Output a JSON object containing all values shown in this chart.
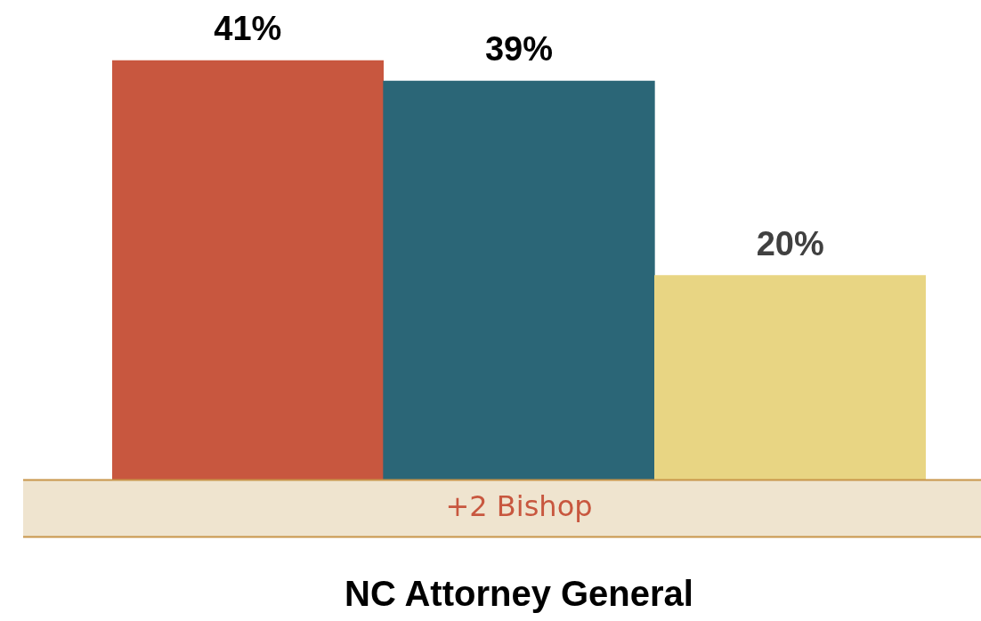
{
  "chart_data": {
    "type": "bar",
    "xlabel": "NC Attorney General",
    "categories": [
      null,
      null,
      null
    ],
    "values": [
      41,
      39,
      20
    ],
    "colors": [
      "#c8573f",
      "#2b6677",
      "#e8d583"
    ],
    "value_labels": [
      "41%",
      "39%",
      "20%"
    ],
    "tick_labels": "x",
    "legend": false,
    "grid": false,
    "annotations": [
      "+2 Bishop"
    ]
  }
}
